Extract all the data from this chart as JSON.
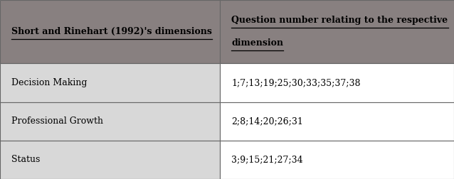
{
  "header_col1": "Short and Rinehart (1992)'s dimensions",
  "header_col2_line1": "Question number relating to the respective",
  "header_col2_line2": "dimension",
  "rows": [
    [
      "Decision Making",
      "1;7;13;19;25;30;33;35;37;38"
    ],
    [
      "Professional Growth",
      "2;8;14;20;26;31"
    ],
    [
      "Status",
      "3;9;15;21;27;34"
    ]
  ],
  "header_bg": "#888080",
  "row_bg_col1": "#d8d8d8",
  "row_bg_col2": "#ffffff",
  "header_text_color": "#000000",
  "row_text_color": "#000000",
  "border_color": "#666666",
  "col_split": 0.485,
  "header_fontsize": 9.0,
  "row_fontsize": 9.0
}
